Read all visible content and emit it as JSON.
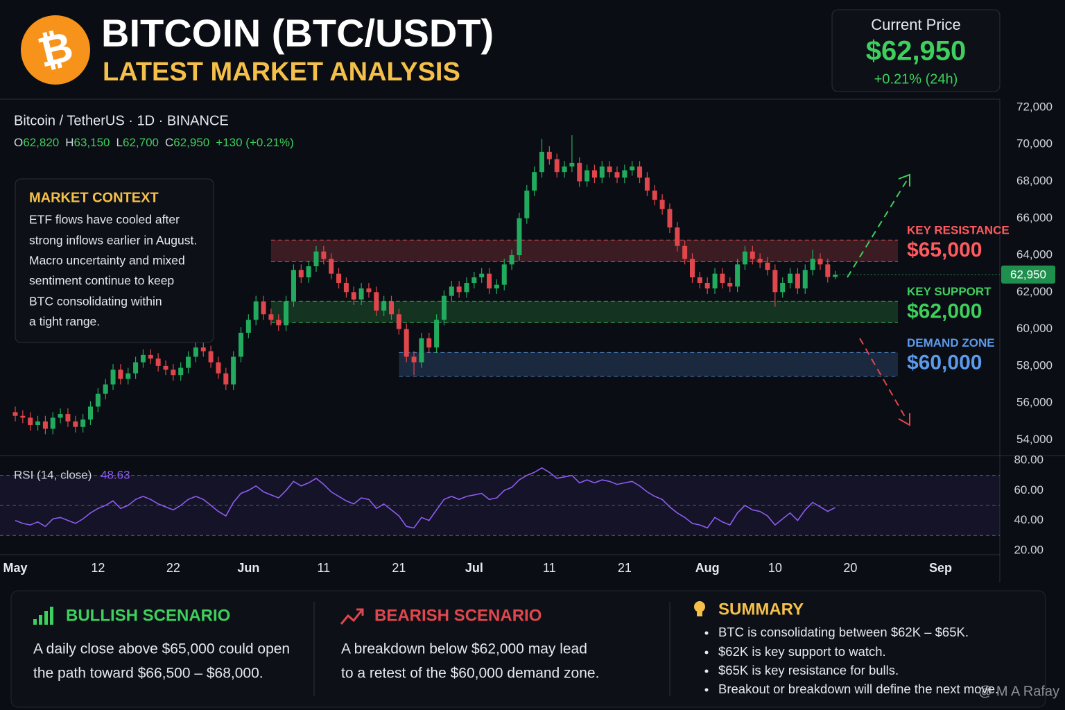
{
  "header": {
    "logo_symbol": "₿",
    "title": "BITCOIN (BTC/USDT)",
    "subtitle": "LATEST MARKET ANALYSIS"
  },
  "price_card": {
    "label": "Current Price",
    "price": "$62,950",
    "change": "+0.21% (24h)"
  },
  "market_context": {
    "title": "MARKET CONTEXT",
    "lines": [
      "ETF flows have cooled after",
      "strong inflows earlier in August.",
      "Macro uncertainty and mixed",
      "sentiment continue to keep",
      "BTC consolidating within",
      "a tight range."
    ]
  },
  "chart_data": [
    {
      "type": "candlestick",
      "title": "Bitcoin / TetherUS · 1D · BINANCE",
      "ohlc": [
        {
          "key": "O",
          "value": "62,820"
        },
        {
          "key": "H",
          "value": "63,150"
        },
        {
          "key": "L",
          "value": "62,700"
        },
        {
          "key": "C",
          "value": "62,950"
        }
      ],
      "change": "+130 (+0.21%)",
      "up_color": "#22ab5e",
      "down_color": "#e0474c",
      "x": [
        "05-01",
        "05-02",
        "05-03",
        "05-04",
        "05-05",
        "05-06",
        "05-07",
        "05-08",
        "05-09",
        "05-10",
        "05-11",
        "05-12",
        "05-13",
        "05-14",
        "05-15",
        "05-16",
        "05-17",
        "05-18",
        "05-19",
        "05-20",
        "05-21",
        "05-22",
        "05-23",
        "05-24",
        "05-25",
        "05-26",
        "05-27",
        "05-28",
        "05-29",
        "05-30",
        "05-31",
        "06-01",
        "06-02",
        "06-03",
        "06-04",
        "06-05",
        "06-06",
        "06-07",
        "06-08",
        "06-09",
        "06-10",
        "06-11",
        "06-12",
        "06-13",
        "06-14",
        "06-15",
        "06-16",
        "06-17",
        "06-18",
        "06-19",
        "06-20",
        "06-21",
        "06-22",
        "06-23",
        "06-24",
        "06-25",
        "06-26",
        "06-27",
        "06-28",
        "06-29",
        "06-30",
        "07-01",
        "07-02",
        "07-03",
        "07-04",
        "07-05",
        "07-06",
        "07-07",
        "07-08",
        "07-09",
        "07-10",
        "07-11",
        "07-12",
        "07-13",
        "07-14",
        "07-15",
        "07-16",
        "07-17",
        "07-18",
        "07-19",
        "07-20",
        "07-21",
        "07-22",
        "07-23",
        "07-24",
        "07-25",
        "07-26",
        "07-27",
        "07-28",
        "07-29",
        "07-30",
        "07-31",
        "08-01",
        "08-02",
        "08-03",
        "08-04",
        "08-05",
        "08-06",
        "08-07",
        "08-08",
        "08-09",
        "08-10",
        "08-11",
        "08-12",
        "08-13",
        "08-14",
        "08-15",
        "08-16",
        "08-17",
        "08-18"
      ],
      "open": [
        55500,
        55300,
        55200,
        54800,
        55000,
        54600,
        55200,
        55400,
        55000,
        54700,
        55100,
        55800,
        56500,
        57000,
        57800,
        57300,
        57600,
        58200,
        58600,
        58400,
        58000,
        57800,
        57500,
        57900,
        58500,
        59000,
        58800,
        58200,
        57600,
        57000,
        58500,
        59800,
        60500,
        61500,
        60800,
        60500,
        60200,
        61500,
        63200,
        62800,
        63400,
        64200,
        63800,
        63000,
        62500,
        62000,
        61600,
        62200,
        62000,
        61000,
        61500,
        60800,
        60000,
        58500,
        58200,
        59500,
        59000,
        60500,
        61800,
        62300,
        62000,
        62500,
        62800,
        63000,
        62200,
        62400,
        63500,
        64000,
        66000,
        67500,
        68500,
        69600,
        69200,
        68500,
        68800,
        69000,
        68000,
        68600,
        68200,
        68800,
        68500,
        68200,
        68600,
        68800,
        68200,
        67500,
        67000,
        66500,
        65500,
        64500,
        63800,
        62800,
        62500,
        62200,
        63000,
        62500,
        62300,
        63500,
        64200,
        63800,
        63600,
        63200,
        62000,
        62500,
        63000,
        62200,
        63200,
        63800,
        63500,
        62820
      ],
      "high": [
        55800,
        55600,
        55500,
        55300,
        55300,
        55500,
        55700,
        55700,
        55300,
        55400,
        56100,
        56800,
        57300,
        58100,
        58100,
        57900,
        58500,
        58900,
        58900,
        58700,
        58300,
        58100,
        58200,
        58800,
        59300,
        59300,
        59100,
        58500,
        57900,
        58800,
        60100,
        60800,
        61800,
        61800,
        61100,
        60800,
        61800,
        63500,
        63500,
        63700,
        64500,
        64500,
        64100,
        63300,
        62800,
        62300,
        62500,
        62500,
        62300,
        61800,
        61800,
        61100,
        60300,
        58800,
        59800,
        59800,
        60800,
        62100,
        62600,
        62600,
        62800,
        63100,
        63300,
        63300,
        62700,
        63800,
        64300,
        66300,
        67800,
        68800,
        70300,
        69900,
        69500,
        69100,
        70500,
        69300,
        68900,
        68900,
        69100,
        69100,
        68800,
        68900,
        69100,
        69100,
        68500,
        67800,
        67300,
        66800,
        65800,
        64800,
        64100,
        63100,
        62800,
        63300,
        63300,
        62800,
        63800,
        64500,
        64500,
        64100,
        63900,
        63500,
        62800,
        63300,
        63300,
        63500,
        64300,
        64100,
        63800,
        63150
      ],
      "low": [
        55000,
        54900,
        54500,
        54500,
        54300,
        54300,
        54900,
        54700,
        54400,
        54400,
        54800,
        55500,
        56200,
        56700,
        57000,
        57000,
        57300,
        57900,
        58100,
        57700,
        57500,
        57200,
        57200,
        57600,
        58200,
        58500,
        57900,
        57300,
        56700,
        56700,
        58200,
        59500,
        60200,
        60500,
        60200,
        59900,
        59900,
        61200,
        62500,
        62500,
        63100,
        63500,
        62700,
        62200,
        61700,
        61300,
        61300,
        61700,
        60700,
        60700,
        60500,
        59700,
        58200,
        57500,
        57900,
        58700,
        58700,
        60200,
        61500,
        61700,
        61700,
        62200,
        62500,
        61900,
        61900,
        62100,
        63200,
        63700,
        65700,
        67200,
        68200,
        68900,
        68200,
        68200,
        68500,
        67700,
        67700,
        67900,
        67900,
        68200,
        67900,
        67900,
        68300,
        67900,
        67200,
        66700,
        66200,
        65200,
        64200,
        63500,
        62500,
        62200,
        61900,
        61900,
        62200,
        62000,
        62000,
        63200,
        63500,
        63300,
        62900,
        61200,
        61700,
        62200,
        61900,
        61900,
        62900,
        63200,
        62520,
        62700
      ],
      "close": [
        55300,
        55200,
        54800,
        55000,
        54600,
        55200,
        55400,
        55000,
        54700,
        55100,
        55800,
        56500,
        57000,
        57800,
        57300,
        57600,
        58200,
        58600,
        58400,
        58000,
        57800,
        57500,
        57900,
        58500,
        59000,
        58800,
        58200,
        57600,
        57000,
        58500,
        59800,
        60500,
        61500,
        60800,
        60500,
        60200,
        61500,
        63200,
        62800,
        63400,
        64200,
        63800,
        63000,
        62500,
        62000,
        61600,
        62200,
        62000,
        61000,
        61500,
        60800,
        60000,
        58500,
        58200,
        59500,
        59000,
        60500,
        61800,
        62300,
        62000,
        62500,
        62800,
        63000,
        62200,
        62400,
        63500,
        64000,
        66000,
        67500,
        68500,
        69600,
        69200,
        68500,
        68800,
        69000,
        68000,
        68600,
        68200,
        68800,
        68500,
        68200,
        68600,
        68800,
        68200,
        67500,
        67000,
        66500,
        65500,
        64500,
        63800,
        62800,
        62500,
        62200,
        63000,
        62500,
        62300,
        63500,
        64200,
        63800,
        63600,
        63200,
        62000,
        62500,
        63000,
        62200,
        63200,
        63800,
        63500,
        62820,
        62950
      ],
      "price_line": {
        "value": 62950,
        "label": "62,950",
        "color": "#1f8f4e"
      },
      "zones": [
        {
          "name": "KEY RESISTANCE",
          "label": "$65,000",
          "from": 63650,
          "to": 64820,
          "start": "06-04",
          "color": "#ff5a5f"
        },
        {
          "name": "KEY SUPPORT",
          "label": "$62,000",
          "from": 60350,
          "to": 61510,
          "start": "06-04",
          "color": "#3ecf5c"
        },
        {
          "name": "DEMAND ZONE",
          "label": "$60,000",
          "from": 57450,
          "to": 58730,
          "start": "06-21",
          "color": "#5b9bec"
        }
      ],
      "ylim": [
        53150,
        72450
      ],
      "yticks": [
        {
          "value": 72000,
          "label": "72,000"
        },
        {
          "value": 70000,
          "label": "70,000"
        },
        {
          "value": 68000,
          "label": "68,000"
        },
        {
          "value": 66000,
          "label": "66,000"
        },
        {
          "value": 64000,
          "label": "64,000"
        },
        {
          "value": 62000,
          "label": "62,000"
        },
        {
          "value": 60000,
          "label": "60,000"
        },
        {
          "value": 58000,
          "label": "58,000"
        },
        {
          "value": 56000,
          "label": "56,000"
        },
        {
          "value": 54000,
          "label": "54,000"
        }
      ],
      "grid": true
    },
    {
      "type": "line",
      "title": "RSI (14, close)",
      "last_value": 48.63,
      "color": "#8e5cf0",
      "values": [
        40,
        38,
        37,
        39,
        36,
        41,
        42,
        40,
        38,
        41,
        45,
        48,
        50,
        53,
        48,
        50,
        54,
        56,
        54,
        51,
        49,
        47,
        50,
        54,
        56,
        54,
        50,
        46,
        43,
        52,
        58,
        60,
        63,
        59,
        57,
        55,
        60,
        66,
        63,
        65,
        68,
        64,
        59,
        56,
        53,
        51,
        55,
        54,
        48,
        51,
        47,
        43,
        36,
        35,
        42,
        40,
        47,
        54,
        56,
        54,
        56,
        57,
        58,
        54,
        55,
        60,
        62,
        67,
        70,
        72,
        75,
        72,
        68,
        69,
        70,
        65,
        67,
        65,
        67,
        66,
        64,
        65,
        66,
        63,
        59,
        56,
        54,
        49,
        45,
        42,
        38,
        37,
        35,
        42,
        39,
        37,
        45,
        50,
        47,
        46,
        43,
        37,
        41,
        45,
        40,
        47,
        52,
        49,
        46,
        48.63
      ],
      "levels": [
        70,
        50,
        30
      ],
      "ylim": [
        17.2,
        83.2
      ],
      "yticks": [
        {
          "value": 80,
          "label": "80.00"
        },
        {
          "value": 60,
          "label": "60.00"
        },
        {
          "value": 40,
          "label": "40.00"
        },
        {
          "value": 20,
          "label": "20.00"
        }
      ],
      "xticks": [
        {
          "value": "05-01",
          "label": "May"
        },
        {
          "value": "05-12",
          "label": "12"
        },
        {
          "value": "05-22",
          "label": "22"
        },
        {
          "value": "06-01",
          "label": "Jun"
        },
        {
          "value": "06-11",
          "label": "11"
        },
        {
          "value": "06-21",
          "label": "21"
        },
        {
          "value": "07-01",
          "label": "Jul"
        },
        {
          "value": "07-11",
          "label": "11"
        },
        {
          "value": "07-21",
          "label": "21"
        },
        {
          "value": "08-01",
          "label": "Aug"
        },
        {
          "value": "08-10",
          "label": "10"
        },
        {
          "value": "08-20",
          "label": "20"
        },
        {
          "value": "09-01",
          "label": "Sep"
        }
      ]
    }
  ],
  "panels": [
    {
      "title": "BULLISH SCENARIO",
      "lines": [
        "A daily close above $65,000 could open",
        "the path toward $66,500 – $68,000."
      ]
    },
    {
      "title": "BEARISH SCENARIO",
      "lines": [
        "A breakdown below $62,000 may lead",
        "to a retest of the $60,000 demand zone."
      ]
    },
    {
      "title": "SUMMARY",
      "lines": [
        "BTC is consolidating between $62K – $65K.",
        "$62K is key support to watch.",
        "$65K is key resistance for bulls.",
        "Breakout or breakdown will define the next move."
      ]
    }
  ],
  "watermark": "@ M A Rafay"
}
